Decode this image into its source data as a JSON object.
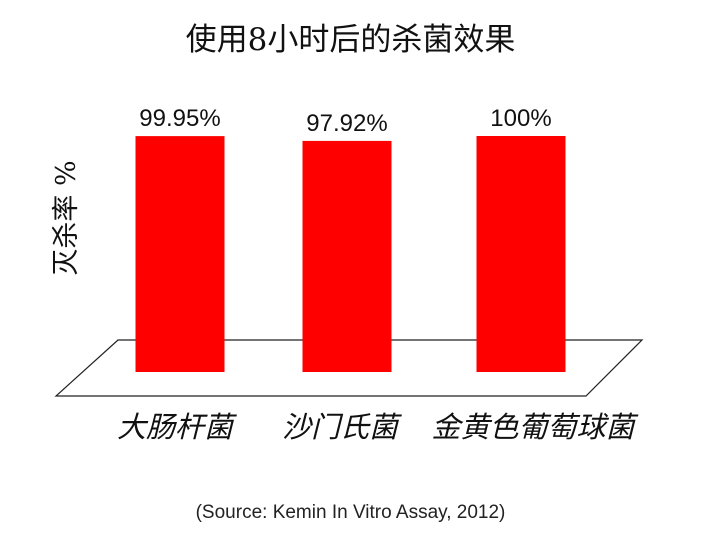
{
  "title": "使用8小时后的杀菌效果",
  "source": "(Source: Kemin In Vitro Assay, 2012)",
  "chart_data": {
    "type": "bar",
    "title": "使用8小时后的杀菌效果",
    "ylabel": "灭杀率 %",
    "xlabel": "",
    "categories": [
      "大肠杆菌",
      "沙门氏菌",
      "金黄色葡萄球菌"
    ],
    "values": [
      99.95,
      97.92,
      100
    ],
    "value_labels": [
      "99.95%",
      "97.92%",
      "100%"
    ],
    "ylim": [
      0,
      100
    ],
    "bar_color": "#ff0000",
    "grid": false
  }
}
